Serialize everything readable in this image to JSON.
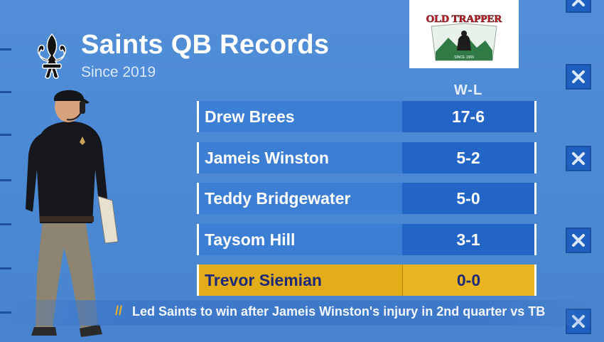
{
  "header": {
    "title": "Saints QB Records",
    "subtitle": "Since 2019"
  },
  "table": {
    "column_header": "W-L",
    "rows": [
      {
        "name": "Drew Brees",
        "record": "17-6"
      },
      {
        "name": "Jameis Winston",
        "record": "5-2"
      },
      {
        "name": "Teddy Bridgewater",
        "record": "5-0"
      },
      {
        "name": "Taysom Hill",
        "record": "3-1"
      },
      {
        "name": "Trevor Siemian",
        "record": "0-0",
        "highlighted": true
      }
    ]
  },
  "sponsor": {
    "logo_text": "OLD TRAPPER",
    "tagline": "SINCE 1969"
  },
  "ticker": {
    "marker": "//",
    "text": "Led Saints to win after Jameis Winston's injury in 2nd quarter vs TB"
  },
  "icons": {
    "team_logo": "fleur-de-lis-icon",
    "decor": "close-icon"
  },
  "colors": {
    "background": "#4c8ad6",
    "row_name": "#3c7ed3",
    "row_record": "#2265c7",
    "highlight": "#e2ad19",
    "highlight_text": "#1d2a7a"
  }
}
